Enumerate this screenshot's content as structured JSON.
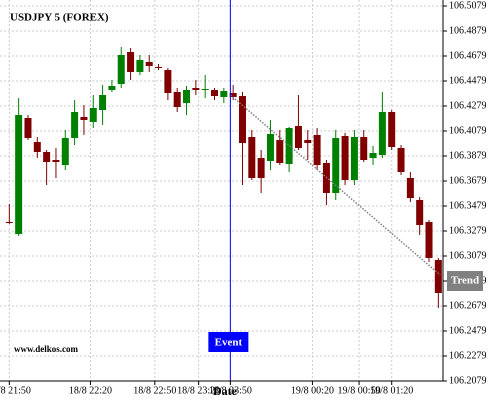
{
  "chart_data": {
    "type": "candlestick",
    "title": "USDJPY 5 (FOREX)",
    "xlabel": "Date",
    "watermark": "www.delkos.com",
    "up_color": "#008000",
    "down_color": "#800000",
    "candles": {
      "open": [
        106.3351,
        106.3255,
        106.4183,
        106.3991,
        106.3911,
        106.3847,
        106.3807,
        106.4023,
        106.4191,
        106.4151,
        106.4247,
        106.4407,
        106.4455,
        106.4711,
        106.4551,
        106.4631,
        106.4591,
        106.4567,
        106.4391,
        106.4303,
        106.4423,
        106.4407,
        106.4407,
        106.4351,
        106.4383,
        106.4359,
        106.4031,
        106.3863,
        106.3839,
        106.4007,
        106.3815,
        106.4119,
        106.4007,
        106.4047,
        106.3823,
        106.3583,
        106.4039,
        106.3687,
        106.4031,
        106.3863,
        106.3887,
        106.4231,
        106.3943,
        106.3703,
        106.3527,
        106.3351,
        106.3047
      ],
      "high": [
        106.3495,
        106.4343,
        106.4207,
        106.4031,
        106.3927,
        106.3943,
        106.4087,
        106.4327,
        106.4287,
        106.4367,
        106.4447,
        106.4487,
        106.4751,
        106.4743,
        106.4687,
        106.4687,
        106.4615,
        106.4583,
        106.4423,
        106.4439,
        106.4487,
        106.4527,
        106.4423,
        106.4423,
        106.4447,
        106.4391,
        106.4087,
        106.3927,
        106.4167,
        106.4087,
        106.4111,
        106.4367,
        106.4087,
        106.4103,
        106.3847,
        106.4087,
        106.4063,
        106.4087,
        106.4087,
        106.3959,
        106.4391,
        106.4247,
        106.3967,
        106.3751,
        106.3551,
        106.3367,
        106.3063
      ],
      "low": [
        106.3335,
        106.3239,
        106.4007,
        106.3863,
        106.3647,
        106.3703,
        106.3767,
        106.3967,
        106.4047,
        106.4103,
        106.4127,
        106.4391,
        106.4423,
        106.4487,
        106.4527,
        106.4551,
        106.4567,
        106.4327,
        106.4231,
        106.4207,
        106.4367,
        106.4343,
        106.4327,
        106.4303,
        106.4327,
        106.3647,
        106.3687,
        106.3583,
        106.3767,
        106.3807,
        106.3751,
        106.3927,
        106.3847,
        106.3767,
        106.3487,
        106.3527,
        106.3647,
        106.3647,
        106.3831,
        106.3807,
        106.3863,
        106.3927,
        106.3727,
        106.3511,
        106.3247,
        106.3031,
        106.2663
      ],
      "close": [
        106.3347,
        106.4207,
        106.4023,
        106.3911,
        106.3831,
        106.3831,
        106.4023,
        106.4231,
        106.4167,
        106.4263,
        106.4367,
        106.4439,
        106.4687,
        106.4551,
        106.4647,
        106.4599,
        106.4583,
        106.4383,
        106.4271,
        106.4407,
        106.4407,
        106.4415,
        106.4359,
        106.4399,
        106.4351,
        106.3983,
        106.3703,
        106.3703,
        106.4055,
        106.3823,
        106.4103,
        106.3943,
        106.3983,
        106.3807,
        106.3583,
        106.4023,
        106.3687,
        106.4031,
        106.3847,
        106.3903,
        106.4231,
        106.3951,
        106.3751,
        106.3543,
        106.3327,
        106.3063,
        106.2783
      ]
    },
    "xlim": [
      -1,
      46.5
    ],
    "xticks": [
      {
        "value": 0,
        "label": "18/8 21:50"
      },
      {
        "value": 8.7,
        "label": "18/8 22:20"
      },
      {
        "value": 15.6,
        "label": "18/8 22:50"
      },
      {
        "value": 20.3,
        "label": "18/8 23:20"
      },
      {
        "value": 23.7,
        "label": "18/8 23:50"
      },
      {
        "value": 32.5,
        "label": "19/8 00:20"
      },
      {
        "value": 37.5,
        "label": "19/8 00:50"
      },
      {
        "value": 41,
        "label": "19/8 01:20"
      }
    ],
    "ylim": [
      106.2079,
      106.5079
    ],
    "yticks": [
      106.2079,
      106.2279,
      106.2479,
      106.2679,
      106.2879,
      106.3079,
      106.3279,
      106.3479,
      106.3679,
      106.3879,
      106.4079,
      106.4279,
      106.4479,
      106.4679,
      106.4879,
      106.5079
    ],
    "grid": true,
    "event": {
      "label": "Event",
      "x": 23.7,
      "color": "#0000ff"
    },
    "trend": {
      "label": "Trend",
      "x": [
        23.7,
        46.2
      ],
      "values": [
        106.4367,
        106.2927
      ],
      "color": "#808080"
    }
  }
}
